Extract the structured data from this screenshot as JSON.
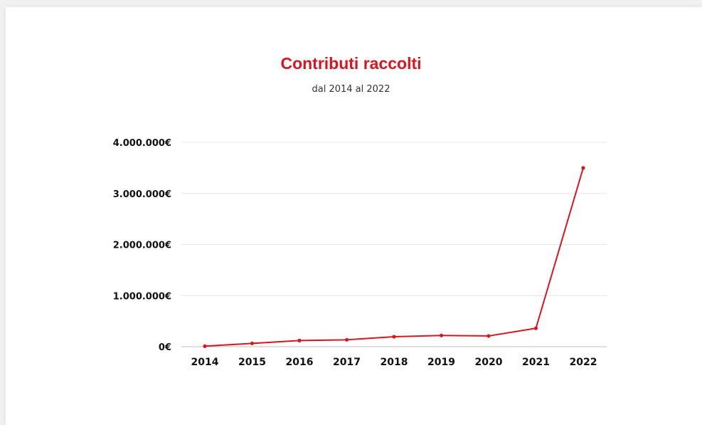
{
  "chart_data": {
    "type": "line",
    "title": "Contributi raccolti",
    "subtitle": "dal 2014 al 2022",
    "categories": [
      "2014",
      "2015",
      "2016",
      "2017",
      "2018",
      "2019",
      "2020",
      "2021",
      "2022"
    ],
    "series": [
      {
        "values": [
          10000,
          65000,
          120000,
          135000,
          195000,
          220000,
          210000,
          360000,
          3500000
        ],
        "color": "#d9151d"
      }
    ],
    "ylim": [
      0,
      4000000
    ],
    "yticks": [
      0,
      1000000,
      2000000,
      3000000,
      4000000
    ],
    "ytick_labels": [
      "0€",
      "1.000.000€",
      "2.000.000€",
      "3.000.000€",
      "4.000.000€"
    ],
    "grid": true,
    "xlabel": "",
    "ylabel": ""
  }
}
